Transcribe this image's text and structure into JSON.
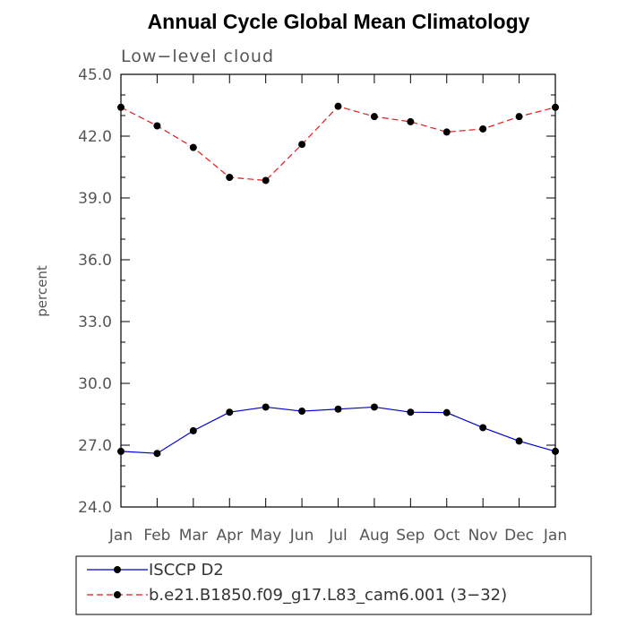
{
  "chart_data": {
    "type": "line",
    "title": "Annual Cycle Global Mean Climatology",
    "subtitle": "Low−level cloud",
    "xlabel": "",
    "ylabel": "percent",
    "categories": [
      "Jan",
      "Feb",
      "Mar",
      "Apr",
      "May",
      "Jun",
      "Jul",
      "Aug",
      "Sep",
      "Oct",
      "Nov",
      "Dec",
      "Jan"
    ],
    "ylim": [
      24.0,
      45.0
    ],
    "yticks": [
      "24.0",
      "27.0",
      "30.0",
      "33.0",
      "36.0",
      "39.0",
      "42.0",
      "45.0"
    ],
    "grid": false,
    "legend_position": "bottom",
    "series": [
      {
        "name": "ISCCP D2",
        "color": "#0000cc",
        "dash": "solid",
        "values": [
          26.7,
          26.6,
          27.7,
          28.6,
          28.85,
          28.65,
          28.75,
          28.85,
          28.6,
          28.58,
          27.85,
          27.2,
          26.7
        ]
      },
      {
        "name": "b.e21.B1850.f09_g17.L83_cam6.001 (3−32)",
        "color": "#e41a1c",
        "dash": "dashed",
        "values": [
          43.4,
          42.5,
          41.45,
          40.0,
          39.85,
          41.6,
          43.45,
          42.95,
          42.7,
          42.2,
          42.35,
          42.95,
          43.4
        ]
      }
    ]
  }
}
